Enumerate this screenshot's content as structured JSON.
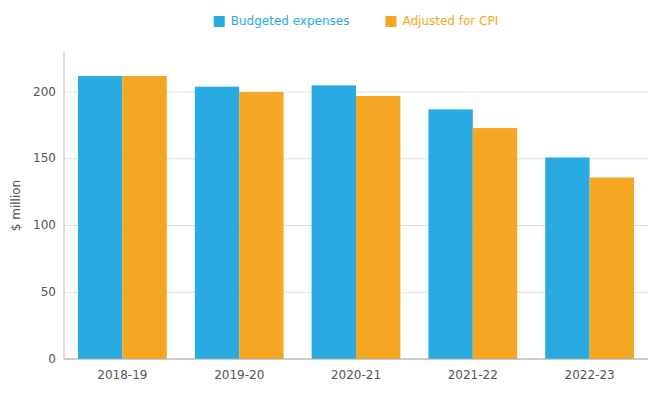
{
  "chart_data": {
    "type": "bar",
    "categories": [
      "2018-19",
      "2019-20",
      "2020-21",
      "2021-22",
      "2022-23"
    ],
    "series": [
      {
        "name": "Budgeted expenses",
        "color": "#29ABE2",
        "values": [
          212,
          204,
          205,
          187,
          151
        ]
      },
      {
        "name": "Adjusted for CPI",
        "color": "#F5A623",
        "values": [
          212,
          200,
          197,
          173,
          136
        ]
      }
    ],
    "ylabel": "$ million",
    "ylim": [
      0,
      230
    ],
    "yticks": [
      0,
      50,
      100,
      150,
      200
    ],
    "grid": true,
    "legend": "top"
  }
}
